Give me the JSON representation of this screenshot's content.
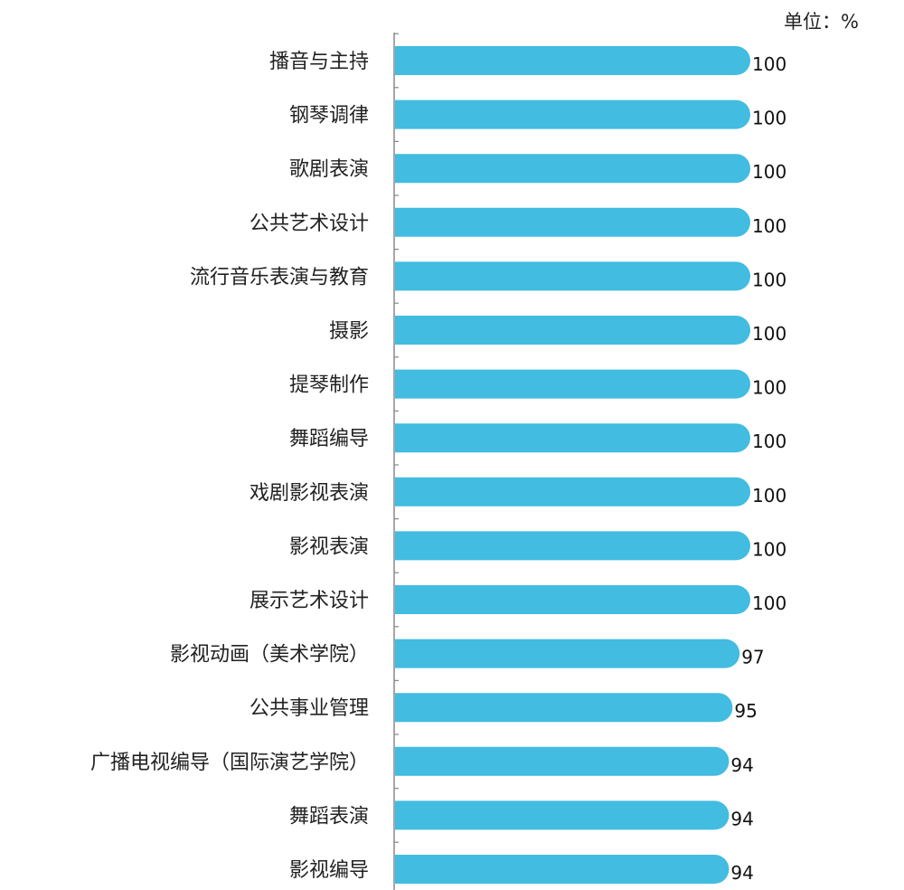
{
  "chart_data": {
    "type": "bar",
    "orientation": "horizontal",
    "unit_label": "单位：%",
    "categories": [
      "播音与主持",
      "钢琴调律",
      "歌剧表演",
      "公共艺术设计",
      "流行音乐表演与教育",
      "摄影",
      "提琴制作",
      "舞蹈编导",
      "戏剧影视表演",
      "影视表演",
      "展示艺术设计",
      "影视动画（美术学院）",
      "公共事业管理",
      "广播电视编导（国际演艺学院）",
      "舞蹈表演",
      "影视编导"
    ],
    "values": [
      100,
      100,
      100,
      100,
      100,
      100,
      100,
      100,
      100,
      100,
      100,
      97,
      95,
      94,
      94,
      94
    ],
    "xlim": [
      0,
      100
    ],
    "bar_color": "#42BCE0",
    "axis_color": "#888888",
    "grid": false,
    "legend": "none"
  }
}
